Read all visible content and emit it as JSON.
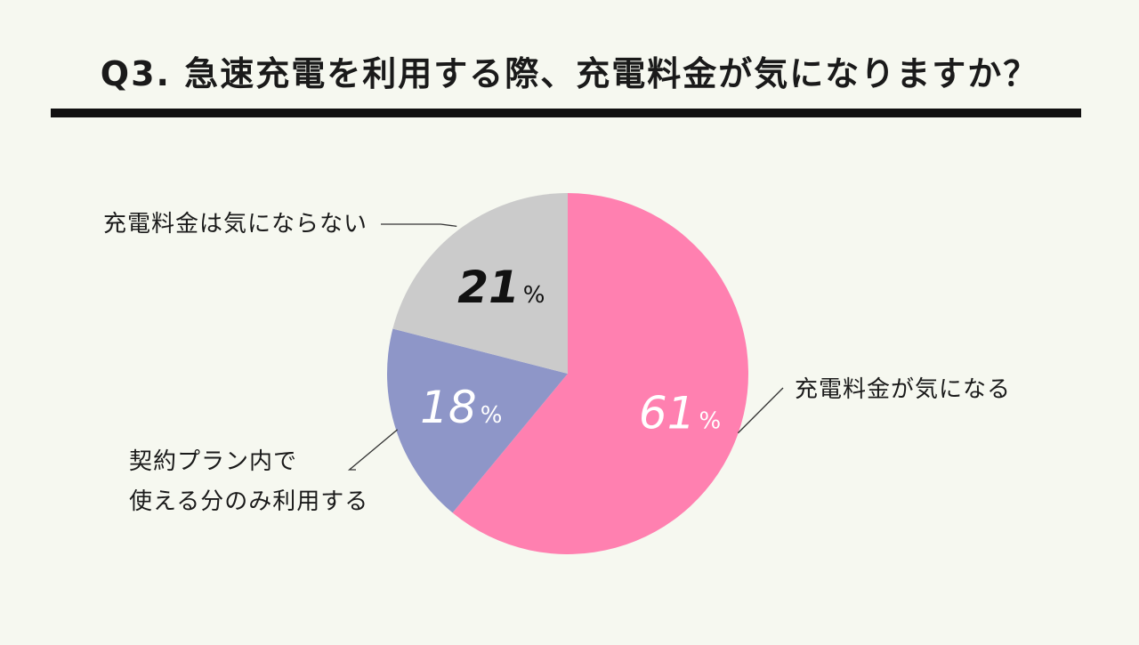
{
  "title": "Q3. 急速充電を利用する際、充電料金が気になりますか？",
  "chart_data": {
    "type": "pie",
    "slices": [
      {
        "label": "充電料金が気になる",
        "value": 61,
        "value_label": "61",
        "unit": "%",
        "color": "#ff80b0",
        "text_color": "#ffffff"
      },
      {
        "label_lines": [
          "契約プラン内で",
          "使える分のみ利用する"
        ],
        "value": 18,
        "value_label": "18",
        "unit": "%",
        "color": "#8e96c8",
        "text_color": "#ffffff"
      },
      {
        "label": "充電料金は気にならない",
        "value": 21,
        "value_label": "21",
        "unit": "%",
        "color": "#cbcbcb",
        "text_color": "#111111"
      }
    ]
  }
}
